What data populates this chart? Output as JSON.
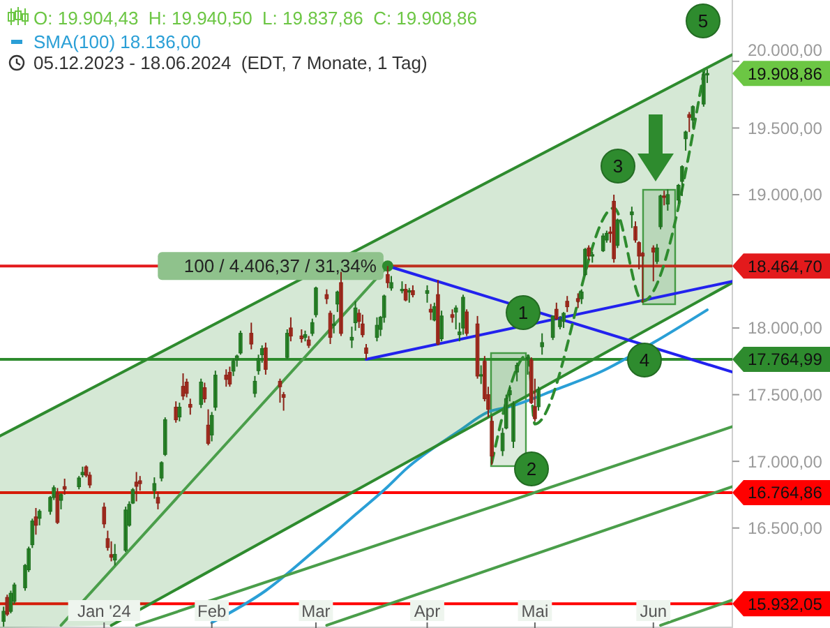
{
  "chart_data": {
    "type": "candlestick",
    "title": "O: 19.904,43  H: 19.940,50  L: 19.837,86  C: 19.908,86",
    "subtitle": "05.12.2023 - 18.06.2024  (EDT, 7 Monate, 1 Tag)",
    "x": [
      "2023-12-05",
      "2023-12-06",
      "2023-12-07",
      "2023-12-08",
      "2023-12-11",
      "2023-12-12",
      "2023-12-13",
      "2023-12-14",
      "2023-12-15",
      "2023-12-18",
      "2023-12-19",
      "2023-12-20",
      "2023-12-21",
      "2023-12-22",
      "2023-12-26",
      "2023-12-27",
      "2023-12-28",
      "2023-12-29",
      "2024-01-02",
      "2024-01-03",
      "2024-01-04",
      "2024-01-05",
      "2024-01-08",
      "2024-01-09",
      "2024-01-10",
      "2024-01-11",
      "2024-01-12",
      "2024-01-16",
      "2024-01-17",
      "2024-01-18",
      "2024-01-19",
      "2024-01-22",
      "2024-01-23",
      "2024-01-24",
      "2024-01-25",
      "2024-01-26",
      "2024-01-29",
      "2024-01-30",
      "2024-01-31",
      "2024-02-01",
      "2024-02-02",
      "2024-02-05",
      "2024-02-06",
      "2024-02-07",
      "2024-02-08",
      "2024-02-09",
      "2024-02-12",
      "2024-02-13",
      "2024-02-14",
      "2024-02-15",
      "2024-02-16",
      "2024-02-20",
      "2024-02-21",
      "2024-02-22",
      "2024-02-23",
      "2024-02-26",
      "2024-02-27",
      "2024-02-28",
      "2024-02-29",
      "2024-03-01",
      "2024-03-04",
      "2024-03-05",
      "2024-03-06",
      "2024-03-07",
      "2024-03-08",
      "2024-03-11",
      "2024-03-12",
      "2024-03-13",
      "2024-03-14",
      "2024-03-15",
      "2024-03-18",
      "2024-03-19",
      "2024-03-20",
      "2024-03-21",
      "2024-03-22",
      "2024-03-25",
      "2024-03-26",
      "2024-03-27",
      "2024-03-28",
      "2024-04-01",
      "2024-04-02",
      "2024-04-03",
      "2024-04-04",
      "2024-04-05",
      "2024-04-08",
      "2024-04-09",
      "2024-04-10",
      "2024-04-11",
      "2024-04-12",
      "2024-04-15",
      "2024-04-16",
      "2024-04-17",
      "2024-04-18",
      "2024-04-19",
      "2024-04-22",
      "2024-04-23",
      "2024-04-24",
      "2024-04-25",
      "2024-04-26",
      "2024-04-29",
      "2024-04-30",
      "2024-05-01",
      "2024-05-02",
      "2024-05-03",
      "2024-05-06",
      "2024-05-07",
      "2024-05-08",
      "2024-05-09",
      "2024-05-10",
      "2024-05-13",
      "2024-05-14",
      "2024-05-15",
      "2024-05-16",
      "2024-05-17",
      "2024-05-20",
      "2024-05-21",
      "2024-05-22",
      "2024-05-23",
      "2024-05-24",
      "2024-05-28",
      "2024-05-29",
      "2024-05-30",
      "2024-05-31",
      "2024-06-03",
      "2024-06-04",
      "2024-06-05",
      "2024-06-06",
      "2024-06-07",
      "2024-06-10",
      "2024-06-11",
      "2024-06-12",
      "2024-06-13",
      "2024-06-14",
      "2024-06-17",
      "2024-06-18"
    ],
    "ohlc": [
      [
        15800,
        15910,
        15760,
        15875
      ],
      [
        15979,
        16000,
        15840,
        15854
      ],
      [
        15875,
        16030,
        15860,
        16010
      ],
      [
        15950,
        16090,
        15930,
        16073
      ],
      [
        16052,
        16230,
        16030,
        16219
      ],
      [
        16187,
        16360,
        16170,
        16344
      ],
      [
        16375,
        16570,
        16350,
        16552
      ],
      [
        16583,
        16650,
        16450,
        16521
      ],
      [
        16573,
        16640,
        16520,
        16625
      ],
      [
        16625,
        16740,
        16600,
        16729
      ],
      [
        16729,
        16820,
        16710,
        16802
      ],
      [
        16760,
        16800,
        16530,
        16542
      ],
      [
        16708,
        16760,
        16640,
        16750
      ],
      [
        16810,
        16870,
        16750,
        16792
      ],
      [
        16810,
        16890,
        16790,
        16875
      ],
      [
        16900,
        16960,
        16880,
        16917
      ],
      [
        16958,
        16970,
        16880,
        16896
      ],
      [
        16896,
        16920,
        16800,
        16823
      ],
      [
        16656,
        16690,
        16500,
        16531
      ],
      [
        16420,
        16480,
        16330,
        16354
      ],
      [
        16300,
        16400,
        16250,
        16281
      ],
      [
        16260,
        16380,
        16220,
        16302
      ],
      [
        16333,
        16660,
        16320,
        16635
      ],
      [
        16521,
        16700,
        16510,
        16677
      ],
      [
        16687,
        16800,
        16680,
        16787
      ],
      [
        16844,
        16920,
        16700,
        16813
      ],
      [
        16854,
        16890,
        16780,
        16833
      ],
      [
        16781,
        16880,
        16720,
        16833
      ],
      [
        16729,
        16770,
        16640,
        16687
      ],
      [
        16875,
        17000,
        16850,
        16990
      ],
      [
        17052,
        17330,
        17040,
        17312
      ],
      [
        17406,
        17450,
        17290,
        17312
      ],
      [
        17333,
        17440,
        17300,
        17406
      ],
      [
        17562,
        17660,
        17460,
        17490
      ],
      [
        17594,
        17620,
        17480,
        17510
      ],
      [
        17427,
        17470,
        17350,
        17406
      ],
      [
        17427,
        17620,
        17400,
        17594
      ],
      [
        17552,
        17590,
        17440,
        17469
      ],
      [
        17271,
        17390,
        17120,
        17135
      ],
      [
        17198,
        17370,
        17150,
        17344
      ],
      [
        17406,
        17680,
        17380,
        17646
      ],
      [
        17646,
        17690,
        17560,
        17615
      ],
      [
        17667,
        17710,
        17560,
        17580
      ],
      [
        17677,
        17770,
        17640,
        17750
      ],
      [
        17760,
        17800,
        17710,
        17790
      ],
      [
        17813,
        17980,
        17800,
        17960
      ],
      [
        17960,
        18040,
        17840,
        17880
      ],
      [
        17510,
        17640,
        17480,
        17600
      ],
      [
        17680,
        17800,
        17650,
        17770
      ],
      [
        17800,
        17870,
        17740,
        17845
      ],
      [
        17850,
        17890,
        17650,
        17690
      ],
      [
        17600,
        17620,
        17440,
        17560
      ],
      [
        17500,
        17520,
        17380,
        17480
      ],
      [
        17780,
        17990,
        17770,
        17960
      ],
      [
        18000,
        18080,
        17900,
        17940
      ],
      [
        17940,
        17990,
        17890,
        17920
      ],
      [
        17930,
        17980,
        17900,
        17950
      ],
      [
        17910,
        17940,
        17850,
        17870
      ],
      [
        17960,
        18070,
        17940,
        18040
      ],
      [
        18100,
        18310,
        18080,
        18300
      ],
      [
        18250,
        18290,
        18180,
        18220
      ],
      [
        18110,
        18130,
        17880,
        17930
      ],
      [
        18020,
        18100,
        17960,
        18030
      ],
      [
        18180,
        18280,
        18120,
        18270
      ],
      [
        18340,
        18420,
        17940,
        17960
      ],
      [
        17910,
        18010,
        17850,
        17930
      ],
      [
        18040,
        18200,
        17980,
        18150
      ],
      [
        18110,
        18140,
        18000,
        18050
      ],
      [
        18030,
        18100,
        17930,
        17950
      ],
      [
        17850,
        17880,
        17765,
        17810
      ],
      [
        17930,
        18080,
        17900,
        18020
      ],
      [
        17990,
        18090,
        17940,
        18080
      ],
      [
        18080,
        18250,
        18040,
        18240
      ],
      [
        18400,
        18464.7,
        18300,
        18340
      ],
      [
        18300,
        18390,
        18280,
        18340
      ],
      [
        18290,
        18350,
        18260,
        18290
      ],
      [
        18290,
        18330,
        18200,
        18210
      ],
      [
        18270,
        18300,
        18190,
        18280
      ],
      [
        18280,
        18320,
        18230,
        18250
      ],
      [
        18260,
        18320,
        18190,
        18280
      ],
      [
        18140,
        18180,
        18060,
        18120
      ],
      [
        18060,
        18190,
        18050,
        18160
      ],
      [
        18250,
        18360,
        17870,
        17880
      ],
      [
        17920,
        18130,
        17900,
        18090
      ],
      [
        18100,
        18140,
        18040,
        18080
      ],
      [
        18120,
        18170,
        17990,
        18150
      ],
      [
        17950,
        18040,
        17900,
        17970
      ],
      [
        18000,
        18250,
        17950,
        18230
      ],
      [
        18120,
        18140,
        17940,
        17960
      ],
      [
        18030,
        18090,
        17620,
        17640
      ],
      [
        17650,
        17720,
        17580,
        17650
      ],
      [
        17750,
        17790,
        17450,
        17470
      ],
      [
        17500,
        17560,
        17330,
        17390
      ],
      [
        17300,
        17340,
        16973,
        17040
      ],
      [
        17080,
        17250,
        17040,
        17210
      ],
      [
        17250,
        17500,
        17240,
        17470
      ],
      [
        17500,
        17570,
        17450,
        17530
      ],
      [
        17150,
        17450,
        17100,
        17430
      ],
      [
        17670,
        17740,
        17600,
        17720
      ],
      [
        17770,
        17800,
        17650,
        17780
      ],
      [
        17760,
        17780,
        17430,
        17440
      ],
      [
        17410,
        17620,
        17300,
        17320
      ],
      [
        17410,
        17560,
        17380,
        17540
      ],
      [
        17860,
        17960,
        17800,
        17890
      ],
      [
        17930,
        18090,
        17910,
        18090
      ],
      [
        18140,
        18190,
        18060,
        18070
      ],
      [
        18010,
        18090,
        17990,
        18060
      ],
      [
        18050,
        18120,
        18000,
        18110
      ],
      [
        18200,
        18240,
        18120,
        18160
      ],
      [
        18220,
        18260,
        18150,
        18200
      ],
      [
        18220,
        18290,
        18180,
        18270
      ],
      [
        18400,
        18600,
        18390,
        18590
      ],
      [
        18600,
        18620,
        18510,
        18540
      ],
      [
        18550,
        18570,
        18490,
        18550
      ],
      [
        18580,
        18710,
        18570,
        18690
      ],
      [
        18660,
        18730,
        18640,
        18710
      ],
      [
        18720,
        18760,
        18640,
        18710
      ],
      [
        18950,
        19000,
        18490,
        18520
      ],
      [
        18620,
        18820,
        18600,
        18810
      ],
      [
        18850,
        18910,
        18750,
        18870
      ],
      [
        18760,
        18800,
        18640,
        18660
      ],
      [
        18640,
        18650,
        18440,
        18540
      ],
      [
        18560,
        18570,
        18190,
        18540
      ],
      [
        18600,
        18620,
        18350,
        18570
      ],
      [
        18500,
        18630,
        18480,
        18600
      ],
      [
        18760,
        19000,
        18740,
        18990
      ],
      [
        18990,
        19030,
        18920,
        18980
      ],
      [
        18930,
        19040,
        18880,
        19000
      ],
      [
        18960,
        19080,
        18930,
        19070
      ],
      [
        19100,
        19220,
        18990,
        19210
      ],
      [
        19420,
        19480,
        19330,
        19470
      ],
      [
        19600,
        19620,
        19470,
        19580
      ],
      [
        19560,
        19670,
        19500,
        19660
      ],
      [
        19680,
        19920,
        19660,
        19900
      ],
      [
        19904.43,
        19940.5,
        19837.86,
        19908.86
      ]
    ],
    "series": [
      {
        "type": "line",
        "name": "SMA(100) 18.136,00",
        "color": "#2a9fd6",
        "x": [
          "2024-02-01",
          "2024-02-16",
          "2024-03-01",
          "2024-03-12",
          "2024-03-21",
          "2024-03-26",
          "2024-04-10",
          "2024-04-18",
          "2024-04-24",
          "2024-05-07",
          "2024-05-20",
          "2024-06-03",
          "2024-06-18"
        ],
        "values": [
          15790,
          16030,
          16340,
          16600,
          16810,
          16940,
          17230,
          17370,
          17410,
          17540,
          17680,
          17890,
          18136
        ]
      },
      {
        "type": "line",
        "color": "#2e8b2e",
        "x": [
          "2023-12-04",
          "2024-01-04",
          "2024-06-25"
        ],
        "values": [
          17190,
          17625,
          20050
        ],
        "lower": [
          15750,
          15770,
          18340
        ],
        "upper": [
          17190,
          17625,
          20050
        ]
      },
      {
        "type": "line",
        "color": "#2e8b2e",
        "x": [
          "2024-01-04",
          "2024-06-25"
        ],
        "values": [
          15770,
          18340
        ]
      },
      {
        "type": "line",
        "color": "#4a9e4a",
        "x": [
          "2023-12-21",
          "2024-03-21"
        ],
        "values": [
          15770,
          18464.7
        ]
      },
      {
        "type": "line",
        "color": "#4a9e4a",
        "x": [
          "2024-01-11",
          "2024-06-25"
        ],
        "values": [
          15770,
          17260
        ]
      },
      {
        "type": "line",
        "color": "#4a9e4a",
        "x": [
          "2024-03-04",
          "2024-06-25"
        ],
        "values": [
          15770,
          16810
        ]
      },
      {
        "type": "line",
        "color": "#4a9e4a",
        "x": [
          "2024-06-05",
          "2024-06-25"
        ],
        "values": [
          15770,
          15960
        ]
      },
      {
        "type": "line",
        "color": "#2222ee",
        "x": [
          "2024-03-21",
          "2024-06-25"
        ],
        "values": [
          18464.7,
          17670
        ]
      },
      {
        "type": "line",
        "color": "#2222ee",
        "x": [
          "2024-03-15",
          "2024-06-25"
        ],
        "values": [
          17765,
          18350
        ]
      },
      {
        "type": "line",
        "color": "#2e8b2e",
        "line_style": "dashed",
        "x": [
          "2024-04-19",
          "2024-04-29",
          "2024-05-01",
          "2024-05-23",
          "2024-05-31",
          "2024-06-17T12:00"
        ],
        "values": [
          16990,
          17800,
          17280,
          18900,
          18200,
          19990
        ]
      }
    ],
    "xlim": [
      "2023-12-04",
      "2024-06-25"
    ],
    "xticks": [
      {
        "value": "2024-01-02",
        "label": "Jan '24"
      },
      {
        "value": "2024-02-01",
        "label": "Feb"
      },
      {
        "value": "2024-03-01",
        "label": "Mar"
      },
      {
        "value": "2024-04-01",
        "label": "Apr"
      },
      {
        "value": "2024-05-01",
        "label": "Mai"
      },
      {
        "value": "2024-06-03",
        "label": "Jun"
      }
    ],
    "ylim": [
      15750,
      20460
    ],
    "yticks": [
      {
        "value": 16500,
        "label": "16.500,00"
      },
      {
        "value": 17000,
        "label": "17.000,00"
      },
      {
        "value": 17500,
        "label": "17.500,00"
      },
      {
        "value": 18000,
        "label": "18.000,00"
      },
      {
        "value": 19000,
        "label": "19.000,00"
      },
      {
        "value": 19500,
        "label": "19.500,00"
      },
      {
        "value": 20000,
        "label": "20.000,00"
      }
    ],
    "ref_lines": [
      {
        "axis": "y",
        "value": 18464.7,
        "label": "18.464,70",
        "color": "#e31a1c"
      },
      {
        "axis": "y",
        "value": 17764.99,
        "label": "17.764,99",
        "color": "#2e8b2e"
      },
      {
        "axis": "y",
        "value": 16764.86,
        "label": "16.764,86",
        "color": "#ff0000"
      },
      {
        "axis": "y",
        "value": 15932.05,
        "label": "15.932,05",
        "color": "#ff0000"
      }
    ],
    "annotations": [
      {
        "text": "100 / 4.406,37 / 31,34%",
        "x": "2024-03-21",
        "y": 18464.7
      },
      "1",
      "2",
      "3",
      "4",
      "5",
      {
        "text": "19.908,86",
        "x": "2024-06-18",
        "y": 19908.86
      }
    ],
    "legend": "top left"
  }
}
